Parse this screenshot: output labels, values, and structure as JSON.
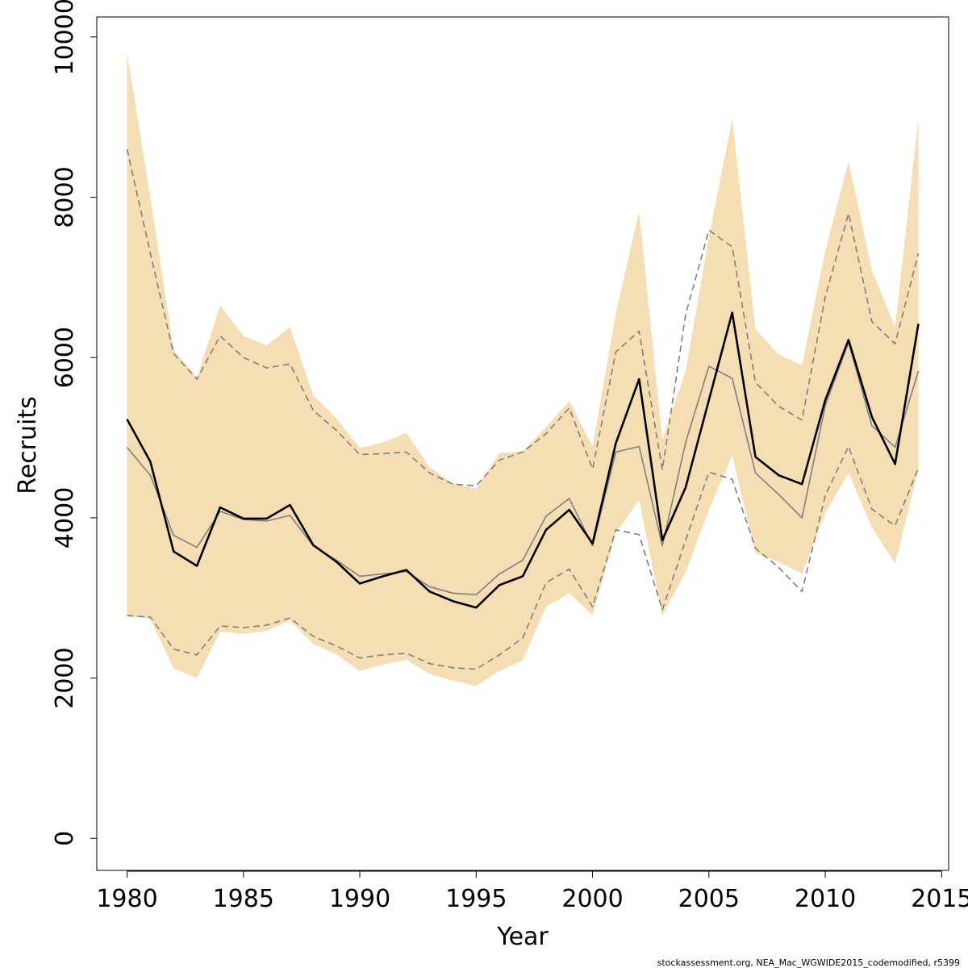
{
  "chart_data": {
    "type": "line",
    "title": "",
    "xlabel": "Year",
    "ylabel": "Recruits",
    "xlim": [
      1978.7,
      2015.3
    ],
    "ylim": [
      -400,
      10250
    ],
    "x_ticks": [
      1980,
      1985,
      1990,
      1995,
      2000,
      2005,
      2010,
      2015
    ],
    "x_tick_labels": [
      "1980",
      "1985",
      "1990",
      "1995",
      "2000",
      "2005",
      "2010",
      "2015"
    ],
    "y_ticks": [
      0,
      2000,
      4000,
      6000,
      8000,
      10000
    ],
    "y_tick_labels": [
      "0",
      "2000",
      "4000",
      "6000",
      "8000",
      "10000"
    ],
    "grid": false,
    "legend": "none",
    "x": [
      1980,
      1981,
      1982,
      1983,
      1984,
      1985,
      1986,
      1987,
      1988,
      1989,
      1990,
      1991,
      1992,
      1993,
      1994,
      1995,
      1996,
      1997,
      1998,
      1999,
      2000,
      2001,
      2002,
      2003,
      2004,
      2005,
      2006,
      2007,
      2008,
      2009,
      2010,
      2011,
      2012,
      2013,
      2014
    ],
    "band": {
      "color": "#f5deb3",
      "upper": [
        9800,
        8000,
        6100,
        5750,
        6650,
        6270,
        6150,
        6380,
        5530,
        5240,
        4870,
        4940,
        5060,
        4630,
        4430,
        4360,
        4810,
        4830,
        5130,
        5460,
        4890,
        6550,
        7820,
        4980,
        5830,
        7500,
        8980,
        6350,
        6040,
        5900,
        7330,
        8450,
        7090,
        6380,
        8980
      ],
      "lower": [
        2780,
        2740,
        2120,
        2000,
        2580,
        2550,
        2590,
        2720,
        2430,
        2290,
        2090,
        2170,
        2230,
        2050,
        1970,
        1900,
        2090,
        2220,
        2890,
        3060,
        2780,
        3810,
        4220,
        2780,
        3320,
        4100,
        4780,
        3560,
        3450,
        3300,
        4060,
        4560,
        3880,
        3430,
        4600
      ]
    },
    "series": [
      {
        "color": "#000000",
        "dash": "solid",
        "values": [
          5230,
          4700,
          3580,
          3400,
          4130,
          3990,
          3990,
          4160,
          3660,
          3450,
          3180,
          3270,
          3350,
          3080,
          2960,
          2880,
          3160,
          3270,
          3850,
          4100,
          3680,
          4930,
          5730,
          3720,
          4380,
          5470,
          6560,
          4760,
          4530,
          4420,
          5470,
          6220,
          5260,
          4670,
          6420
        ]
      },
      {
        "color": "#7f7f7f",
        "dash": "solid",
        "values": [
          4880,
          4530,
          3780,
          3630,
          4080,
          3980,
          3960,
          4030,
          3650,
          3470,
          3270,
          3300,
          3330,
          3140,
          3060,
          3040,
          3300,
          3470,
          4020,
          4240,
          3650,
          4820,
          4890,
          3650,
          4940,
          5890,
          5740,
          4560,
          4290,
          4000,
          5400,
          6190,
          5150,
          4880,
          5830
        ]
      },
      {
        "color": "#7f7f7f",
        "dash": "dashed",
        "values": [
          8600,
          7300,
          6050,
          5730,
          6270,
          6000,
          5870,
          5920,
          5340,
          5090,
          4790,
          4800,
          4820,
          4560,
          4420,
          4400,
          4720,
          4820,
          5050,
          5370,
          4610,
          6070,
          6330,
          4600,
          6540,
          7590,
          7380,
          5690,
          5390,
          5220,
          6760,
          7800,
          6450,
          6170,
          7300
        ]
      },
      {
        "color": "#7f7f7f",
        "dash": "dashed",
        "values": [
          2780,
          2760,
          2360,
          2290,
          2650,
          2630,
          2660,
          2750,
          2520,
          2400,
          2250,
          2290,
          2310,
          2180,
          2130,
          2110,
          2290,
          2500,
          3190,
          3360,
          2890,
          3850,
          3790,
          2850,
          3720,
          4570,
          4480,
          3620,
          3380,
          3080,
          4280,
          4890,
          4110,
          3900,
          4620
        ]
      }
    ]
  },
  "footer": {
    "note": "stockassessment.org, NEA_Mac_WGWIDE2015_codemodified, r5399"
  }
}
